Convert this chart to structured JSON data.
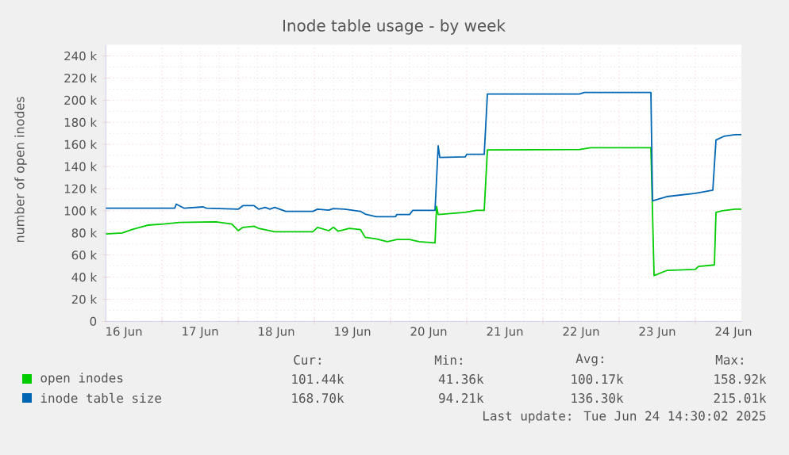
{
  "chart_data": {
    "type": "line",
    "title": "Inode table usage - by week",
    "ylabel": "number of open inodes",
    "xlim": [
      "2025-06-15T18:20",
      "2025-06-24T02:30"
    ],
    "xticks": [
      {
        "value": "2025-06-16",
        "label": "16 Jun"
      },
      {
        "value": "2025-06-17",
        "label": "17 Jun"
      },
      {
        "value": "2025-06-18",
        "label": "18 Jun"
      },
      {
        "value": "2025-06-19",
        "label": "19 Jun"
      },
      {
        "value": "2025-06-20",
        "label": "20 Jun"
      },
      {
        "value": "2025-06-21",
        "label": "21 Jun"
      },
      {
        "value": "2025-06-22",
        "label": "22 Jun"
      },
      {
        "value": "2025-06-23",
        "label": "23 Jun"
      },
      {
        "value": "2025-06-24",
        "label": "24 Jun"
      },
      {
        "value": "2025-06-16T12:00",
        "label": null
      },
      {
        "value": "2025-06-17T12:00",
        "label": null
      },
      {
        "value": "2025-06-18T12:00",
        "label": null
      },
      {
        "value": "2025-06-19T12:00",
        "label": null
      },
      {
        "value": "2025-06-20T12:00",
        "label": null
      },
      {
        "value": "2025-06-21T12:00",
        "label": null
      },
      {
        "value": "2025-06-22T12:00",
        "label": null
      },
      {
        "value": "2025-06-23T12:00",
        "label": null
      }
    ],
    "ylim": [
      0,
      250
    ],
    "yticks": [
      {
        "value": 0,
        "label": "0"
      },
      {
        "value": 20,
        "label": "20 k"
      },
      {
        "value": 40,
        "label": "40 k"
      },
      {
        "value": 60,
        "label": "60 k"
      },
      {
        "value": 80,
        "label": "80 k"
      },
      {
        "value": 100,
        "label": "100 k"
      },
      {
        "value": 120,
        "label": "120 k"
      },
      {
        "value": 140,
        "label": "140 k"
      },
      {
        "value": 160,
        "label": "160 k"
      },
      {
        "value": 180,
        "label": "180 k"
      },
      {
        "value": 200,
        "label": "200 k"
      },
      {
        "value": 220,
        "label": "220 k"
      },
      {
        "value": 240,
        "label": "240 k"
      }
    ],
    "grid": true,
    "legend": "bottom",
    "marker": "none",
    "line_style": "solid",
    "series": [
      {
        "name": "open inodes",
        "color": "#00cc00",
        "x": [
          "2025-06-15T18:20",
          "2025-06-15T23:30",
          "2025-06-16T02:30",
          "2025-06-16T05:00",
          "2025-06-16T07:30",
          "2025-06-16T12:30",
          "2025-06-16T17:30",
          "2025-06-17T05:00",
          "2025-06-17T10:00",
          "2025-06-17T12:00",
          "2025-06-17T13:30",
          "2025-06-17T17:00",
          "2025-06-17T18:30",
          "2025-06-17T23:30",
          "2025-06-18T11:30",
          "2025-06-18T13:00",
          "2025-06-18T16:30",
          "2025-06-18T18:00",
          "2025-06-18T19:30",
          "2025-06-18T23:00",
          "2025-06-19T02:30",
          "2025-06-19T04:00",
          "2025-06-19T07:30",
          "2025-06-19T11:00",
          "2025-06-19T14:00",
          "2025-06-19T18:00",
          "2025-06-19T21:00",
          "2025-06-20T02:00",
          "2025-06-20T02:30",
          "2025-06-20T03:00",
          "2025-06-20T11:30",
          "2025-06-20T15:00",
          "2025-06-20T17:30",
          "2025-06-20T18:30",
          "2025-06-21T23:30",
          "2025-06-22T03:00",
          "2025-06-22T22:00",
          "2025-06-22T23:00",
          "2025-06-23T03:00",
          "2025-06-23T12:00",
          "2025-06-23T13:00",
          "2025-06-23T18:00",
          "2025-06-23T18:30",
          "2025-06-23T20:30",
          "2025-06-24T00:30",
          "2025-06-24T02:30"
        ],
        "values": [
          79,
          80,
          83,
          85,
          87,
          88,
          89.5,
          90,
          88,
          82,
          85,
          86,
          84,
          81,
          81,
          85,
          82,
          85,
          81.5,
          84,
          83,
          76,
          74.5,
          72,
          74,
          74,
          72,
          71,
          104,
          96.6,
          98.5,
          100.4,
          100.4,
          155,
          155.3,
          157,
          157,
          41.4,
          46,
          47,
          49.7,
          51,
          98.5,
          100,
          101.4,
          101.4
        ]
      },
      {
        "name": "inode table size",
        "color": "#0066b3",
        "x": [
          "2025-06-15T18:20",
          "2025-06-16T16:00",
          "2025-06-16T16:30",
          "2025-06-16T19:00",
          "2025-06-17T01:00",
          "2025-06-17T02:00",
          "2025-06-17T12:00",
          "2025-06-17T13:30",
          "2025-06-17T17:00",
          "2025-06-17T18:30",
          "2025-06-17T20:30",
          "2025-06-17T22:00",
          "2025-06-17T23:30",
          "2025-06-18T03:00",
          "2025-06-18T11:30",
          "2025-06-18T13:00",
          "2025-06-18T16:30",
          "2025-06-18T18:00",
          "2025-06-18T21:30",
          "2025-06-19T02:30",
          "2025-06-19T04:00",
          "2025-06-19T07:30",
          "2025-06-19T13:30",
          "2025-06-19T14:00",
          "2025-06-19T18:00",
          "2025-06-19T19:00",
          "2025-06-20T02:00",
          "2025-06-20T03:00",
          "2025-06-20T03:30",
          "2025-06-20T11:30",
          "2025-06-20T12:00",
          "2025-06-20T17:30",
          "2025-06-20T18:30",
          "2025-06-21T23:30",
          "2025-06-22T01:00",
          "2025-06-22T22:00",
          "2025-06-22T22:30",
          "2025-06-23T03:00",
          "2025-06-23T12:00",
          "2025-06-23T17:30",
          "2025-06-23T18:30",
          "2025-06-23T21:00",
          "2025-06-24T00:30",
          "2025-06-24T02:30"
        ],
        "values": [
          102.3,
          102.3,
          106,
          102.3,
          103.5,
          102.3,
          101.4,
          104.6,
          104.6,
          101.4,
          103,
          101.4,
          103,
          99.5,
          99.5,
          101.4,
          100.5,
          102,
          101.4,
          99.5,
          97,
          94.6,
          94.6,
          96.6,
          96.6,
          100.4,
          100.4,
          158.7,
          148.2,
          148.7,
          151,
          151,
          205.6,
          205.6,
          207,
          207,
          109,
          112.8,
          115.7,
          118.6,
          164,
          167.3,
          168.8,
          168.8
        ]
      }
    ],
    "annotations": [
      "Cur:",
      "Min:",
      "Avg:",
      "Max:",
      "101.44k",
      "41.36k",
      "100.17k",
      "158.92k",
      "168.70k",
      "94.21k",
      "136.30k",
      "215.01k",
      "Last update: Tue Jun 24 14:30:02 2025"
    ]
  }
}
